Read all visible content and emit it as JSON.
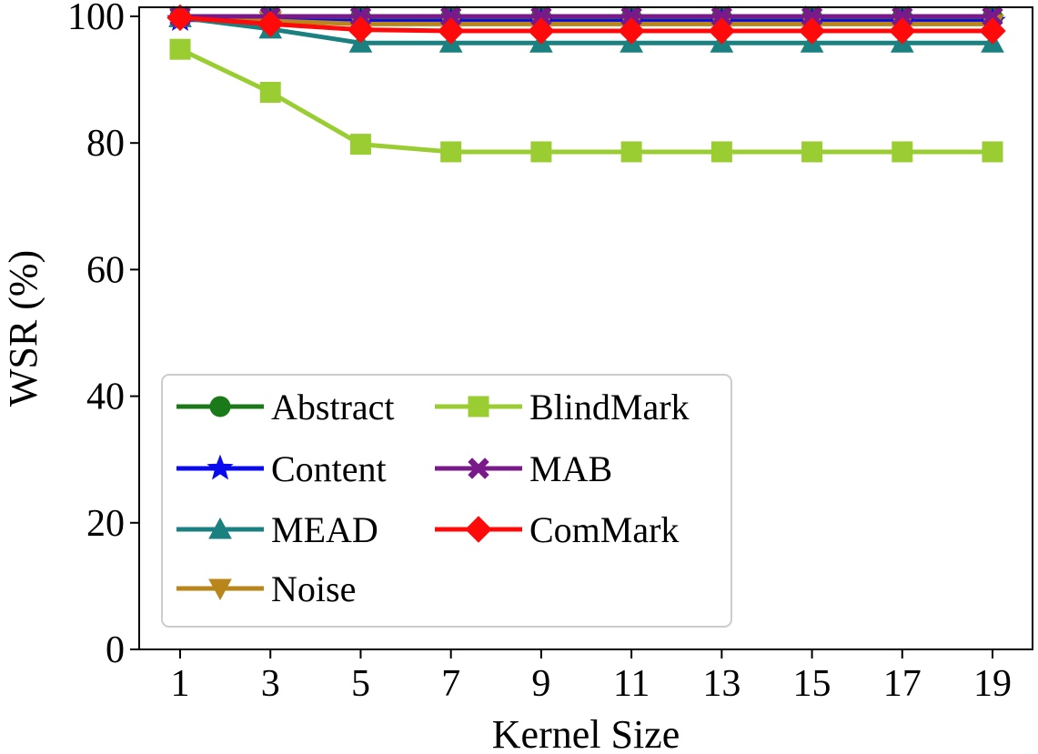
{
  "chart_data": {
    "type": "line",
    "xlabel": "Kernel Size",
    "ylabel": "WSR (%)",
    "x": [
      1,
      3,
      5,
      7,
      9,
      11,
      13,
      15,
      17,
      19
    ],
    "xticks": [
      "1",
      "3",
      "5",
      "7",
      "9",
      "11",
      "13",
      "15",
      "17",
      "19"
    ],
    "yticks": [
      "0",
      "20",
      "40",
      "60",
      "80",
      "100"
    ],
    "ylim": [
      0,
      100
    ],
    "grid": false,
    "legend_position": "lower-left",
    "series": [
      {
        "name": "Abstract",
        "color": "#1a7a1a",
        "marker": "circle",
        "values": [
          100,
          99.8,
          99.8,
          99.8,
          99.8,
          99.8,
          99.8,
          99.8,
          99.8,
          99.8
        ]
      },
      {
        "name": "Content",
        "color": "#0a0aee",
        "marker": "star",
        "values": [
          99.5,
          99.3,
          99.2,
          99.2,
          99.2,
          99.2,
          99.2,
          99.2,
          99.2,
          99.2
        ]
      },
      {
        "name": "MEAD",
        "color": "#1a8080",
        "marker": "triangle-up",
        "values": [
          99.8,
          98.0,
          95.8,
          95.8,
          95.8,
          95.8,
          95.8,
          95.8,
          95.8,
          95.8
        ]
      },
      {
        "name": "Noise",
        "color": "#b8861a",
        "marker": "triangle-down",
        "values": [
          100,
          99.3,
          98.8,
          98.8,
          98.8,
          98.8,
          98.8,
          98.8,
          98.8,
          98.8
        ]
      },
      {
        "name": "BlindMark",
        "color": "#9acd32",
        "marker": "square",
        "values": [
          94.8,
          88.0,
          79.8,
          78.6,
          78.6,
          78.6,
          78.6,
          78.6,
          78.6,
          78.6
        ]
      },
      {
        "name": "MAB",
        "color": "#7a1a8a",
        "marker": "x-filled",
        "values": [
          100,
          100,
          100,
          100,
          100,
          100,
          100,
          100,
          100,
          100
        ]
      },
      {
        "name": "ComMark",
        "color": "#ff0a0a",
        "marker": "diamond",
        "values": [
          99.8,
          98.8,
          97.9,
          97.7,
          97.7,
          97.7,
          97.7,
          97.7,
          97.7,
          97.7
        ]
      }
    ]
  }
}
